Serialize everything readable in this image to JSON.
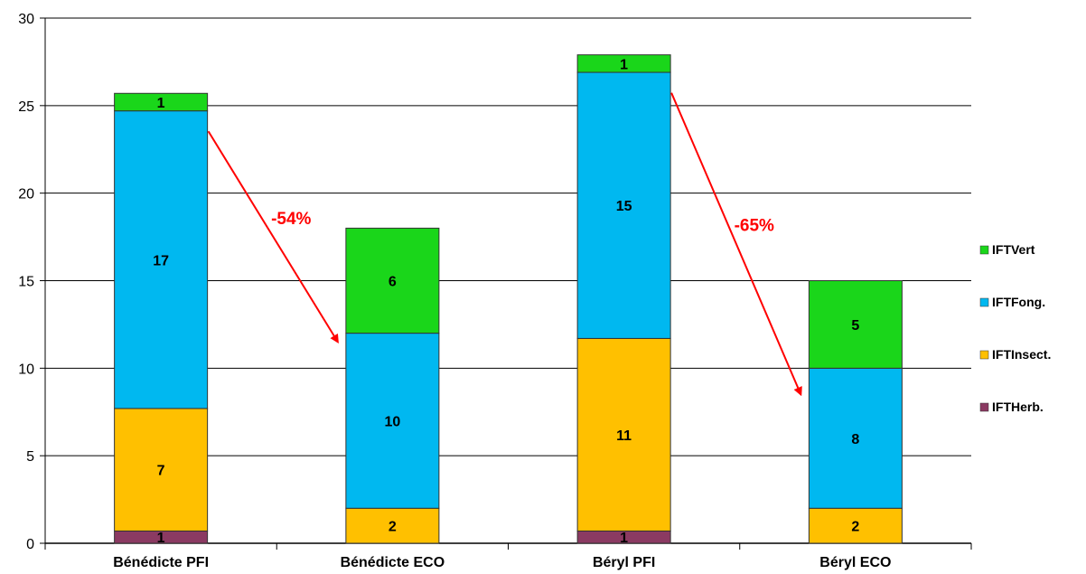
{
  "chart_data": {
    "type": "bar",
    "stacked": true,
    "categories": [
      "Bénédicte PFI",
      "Bénédicte ECO",
      "Béryl PFI",
      "Béryl ECO"
    ],
    "series": [
      {
        "name": "IFTHerb.",
        "color": "#8b3a62",
        "values": [
          0.7,
          0,
          0.7,
          0
        ],
        "labels": [
          "1",
          "",
          "1",
          ""
        ]
      },
      {
        "name": "IFTInsect.",
        "color": "#ffc000",
        "values": [
          7,
          2,
          11,
          2
        ],
        "labels": [
          "7",
          "2",
          "11",
          "2"
        ]
      },
      {
        "name": "IFTFong.",
        "color": "#00b8f0",
        "values": [
          17,
          10,
          15.2,
          8
        ],
        "labels": [
          "17",
          "10",
          "15",
          "8"
        ]
      },
      {
        "name": "IFTVert",
        "color": "#1ad61a",
        "values": [
          1,
          6,
          1,
          5
        ],
        "labels": [
          "1",
          "6",
          "1",
          "5"
        ]
      }
    ],
    "ylim": [
      0,
      30
    ],
    "yticks": [
      "0",
      "5",
      "10",
      "15",
      "20",
      "25",
      "30"
    ],
    "grid": true,
    "legend_position": "right",
    "annotations": [
      {
        "text": "-54%",
        "color": "#ff0000",
        "from_category": "Bénédicte PFI",
        "to_category": "Bénédicte ECO"
      },
      {
        "text": "-65%",
        "color": "#ff0000",
        "from_category": "Béryl PFI",
        "to_category": "Béryl ECO"
      }
    ]
  }
}
